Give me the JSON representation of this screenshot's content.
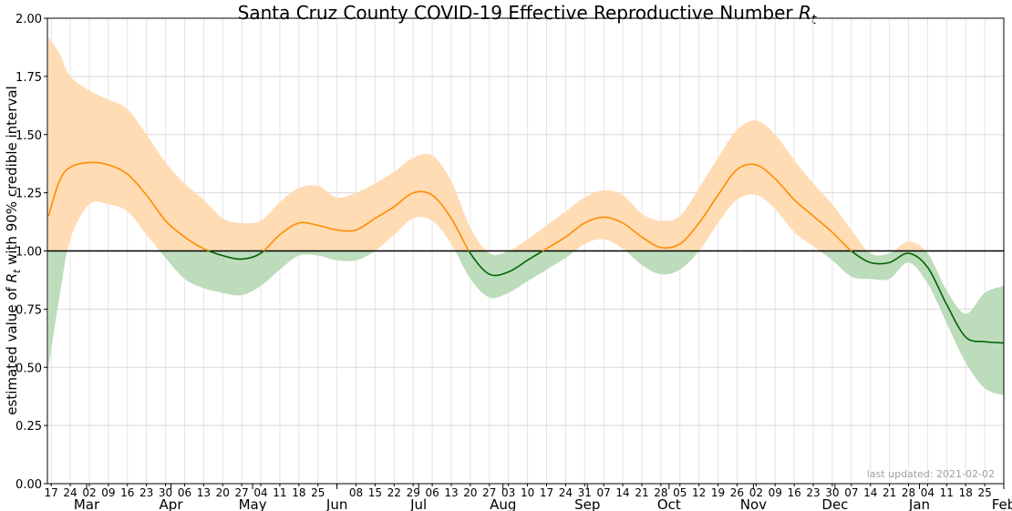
{
  "chart_data": {
    "type": "area",
    "title": "Santa Cruz County COVID-19 Effective Reproductive Number ",
    "title_symbol": "R",
    "title_symbol_sub": "t",
    "ylabel_prefix": "estimated value of ",
    "ylabel_symbol": "R",
    "ylabel_symbol_sub": "t",
    "ylabel_suffix": " with 90% credible interval",
    "ylim": [
      0,
      2
    ],
    "xlim_days": [
      -1.4,
      350
    ],
    "x_start_date": "2020-02-17",
    "yticks": [
      "0.00",
      "0.25",
      "0.50",
      "0.75",
      "1.00",
      "1.25",
      "1.50",
      "1.75",
      "2.00"
    ],
    "week_tick_labels": [
      "17",
      "24",
      "02",
      "09",
      "16",
      "23",
      "30",
      "06",
      "13",
      "20",
      "27",
      "04",
      "11",
      "18",
      "25",
      "",
      "08",
      "15",
      "22",
      "29",
      "06",
      "13",
      "20",
      "27",
      "03",
      "10",
      "17",
      "24",
      "31",
      "07",
      "14",
      "21",
      "28",
      "05",
      "12",
      "19",
      "26",
      "02",
      "09",
      "16",
      "23",
      "30",
      "07",
      "14",
      "21",
      "28",
      "04",
      "11",
      "18",
      "25",
      ""
    ],
    "month_labels": [
      {
        "label": "Mar",
        "day": 13
      },
      {
        "label": "Apr",
        "day": 44
      },
      {
        "label": "May",
        "day": 74
      },
      {
        "label": "Jun",
        "day": 105
      },
      {
        "label": "Jul",
        "day": 135
      },
      {
        "label": "Aug",
        "day": 166
      },
      {
        "label": "Sep",
        "day": 197
      },
      {
        "label": "Oct",
        "day": 227
      },
      {
        "label": "Nov",
        "day": 258
      },
      {
        "label": "Dec",
        "day": 288
      },
      {
        "label": "Jan",
        "day": 319
      },
      {
        "label": "Feb",
        "day": 350
      }
    ],
    "reference_line": 1.0,
    "x_days": [
      -1,
      3,
      7,
      14,
      21,
      28,
      35,
      42,
      49,
      56,
      63,
      70,
      77,
      84,
      91,
      98,
      105,
      112,
      119,
      126,
      133,
      140,
      147,
      154,
      161,
      168,
      175,
      182,
      189,
      196,
      203,
      210,
      217,
      224,
      231,
      238,
      245,
      252,
      259,
      266,
      273,
      280,
      287,
      294,
      301,
      308,
      315,
      322,
      329,
      336,
      343,
      350
    ],
    "series": [
      {
        "name": "Rt estimate",
        "values": [
          1.15,
          1.3,
          1.36,
          1.38,
          1.37,
          1.33,
          1.24,
          1.13,
          1.06,
          1.01,
          0.98,
          0.965,
          0.99,
          1.07,
          1.12,
          1.11,
          1.09,
          1.09,
          1.14,
          1.19,
          1.25,
          1.24,
          1.14,
          0.99,
          0.9,
          0.91,
          0.96,
          1.01,
          1.06,
          1.12,
          1.145,
          1.12,
          1.06,
          1.015,
          1.03,
          1.12,
          1.24,
          1.35,
          1.37,
          1.31,
          1.22,
          1.15,
          1.08,
          1.0,
          0.95,
          0.95,
          0.99,
          0.93,
          0.77,
          0.63,
          0.61,
          0.605
        ]
      },
      {
        "name": "upper 90%",
        "values": [
          1.92,
          1.85,
          1.75,
          1.69,
          1.65,
          1.61,
          1.5,
          1.38,
          1.29,
          1.22,
          1.14,
          1.12,
          1.13,
          1.21,
          1.27,
          1.28,
          1.23,
          1.25,
          1.29,
          1.34,
          1.4,
          1.41,
          1.3,
          1.1,
          0.99,
          1.0,
          1.05,
          1.11,
          1.17,
          1.23,
          1.26,
          1.24,
          1.16,
          1.13,
          1.15,
          1.27,
          1.4,
          1.52,
          1.56,
          1.5,
          1.39,
          1.29,
          1.2,
          1.09,
          0.99,
          0.99,
          1.04,
          0.99,
          0.83,
          0.73,
          0.82,
          0.85
        ]
      },
      {
        "name": "lower 90%",
        "values": [
          0.5,
          0.8,
          1.05,
          1.2,
          1.2,
          1.17,
          1.07,
          0.97,
          0.88,
          0.84,
          0.82,
          0.81,
          0.85,
          0.92,
          0.98,
          0.98,
          0.96,
          0.96,
          1.0,
          1.07,
          1.14,
          1.13,
          1.03,
          0.88,
          0.8,
          0.82,
          0.87,
          0.92,
          0.97,
          1.03,
          1.05,
          1.01,
          0.94,
          0.9,
          0.92,
          1.0,
          1.12,
          1.22,
          1.24,
          1.18,
          1.08,
          1.02,
          0.96,
          0.89,
          0.88,
          0.88,
          0.95,
          0.86,
          0.69,
          0.52,
          0.41,
          0.38
        ]
      }
    ],
    "colors": {
      "above_line": "#ff8c00",
      "above_band": "#ffdcb4",
      "below_line": "#006400",
      "below_band": "#bcdcbc",
      "grid": "#e4e4e4"
    },
    "annotation": "last updated: 2021-02-02",
    "grid": true
  }
}
